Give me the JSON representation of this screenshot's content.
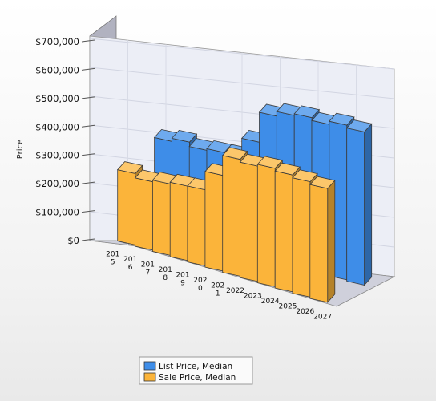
{
  "chart_data": {
    "type": "bar",
    "style": "3d-clustered",
    "title": "",
    "xlabel": "",
    "ylabel": "Price",
    "ylim": [
      0,
      700000
    ],
    "y_ticks": [
      "$0",
      "$100,000",
      "$200,000",
      "$300,000",
      "$400,000",
      "$500,000",
      "$600,000",
      "$700,000"
    ],
    "categories": [
      "2015",
      "2016",
      "2017",
      "2018",
      "2019",
      "2020",
      "2021",
      "2022",
      "2023",
      "2024",
      "2025",
      "2026",
      "2027"
    ],
    "category_labels": [
      "201\n5",
      "201\n6",
      "201\n7",
      "201\n8",
      "201\n9",
      "202\n0",
      "202\n1",
      "2022",
      "2023",
      "2024",
      "2025",
      "2026",
      "2027"
    ],
    "series": [
      {
        "name": "List Price, Median",
        "color": "#3e8de8",
        "values": [
          null,
          290000,
          305000,
          295000,
          305000,
          310000,
          375000,
          480000,
          500000,
          510000,
          505000,
          520000,
          515000
        ]
      },
      {
        "name": "Sale Price, Median",
        "color": "#fbb43a",
        "values": [
          235000,
          225000,
          235000,
          245000,
          250000,
          315000,
          385000,
          380000,
          390000,
          385000,
          380000,
          375000,
          null
        ]
      }
    ],
    "grid": true,
    "legend": "bottom"
  }
}
